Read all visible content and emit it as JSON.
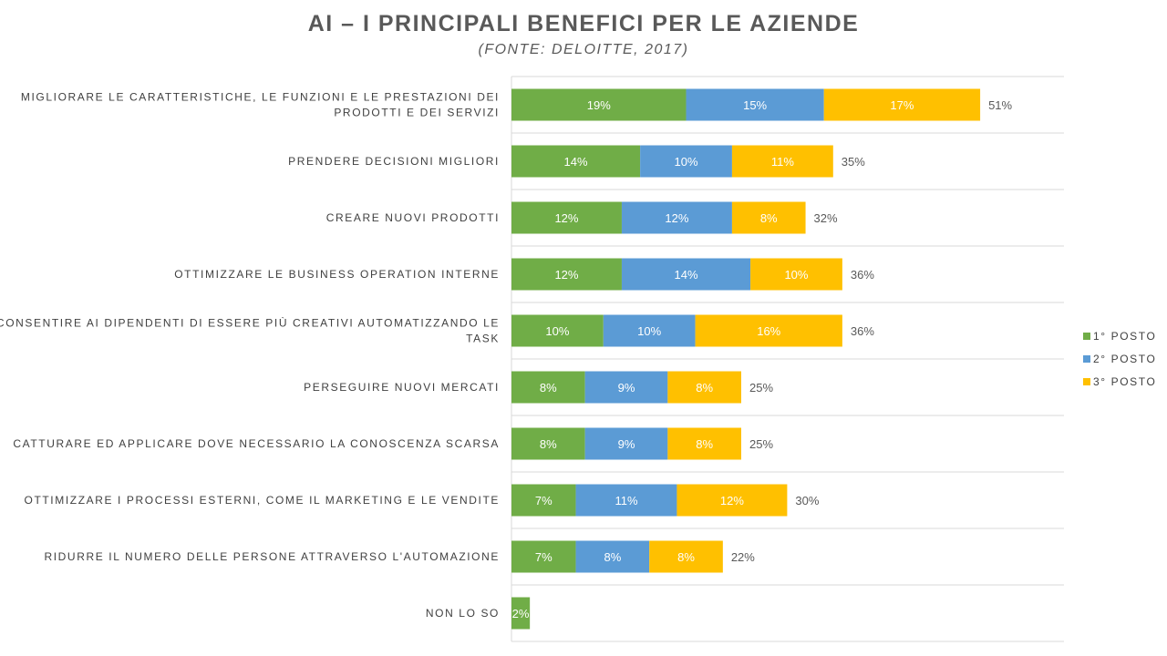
{
  "chart_data": {
    "type": "bar",
    "orientation": "horizontal",
    "stacked": true,
    "title": "AI – I PRINCIPALI BENEFICI PER LE AZIENDE",
    "subtitle": "(FONTE: DELOITTE, 2017)",
    "categories": [
      [
        "MIGLIORARE LE CARATTERISTICHE, LE FUNZIONI E LE PRESTAZIONI DEI",
        "PRODOTTI E DEI SERVIZI"
      ],
      [
        "PRENDERE DECISIONI MIGLIORI"
      ],
      [
        "CREARE NUOVI PRODOTTI"
      ],
      [
        "OTTIMIZZARE LE BUSINESS OPERATION INTERNE"
      ],
      [
        "CONSENTIRE AI DIPENDENTI DI ESSERE PIÙ CREATIVI AUTOMATIZZANDO LE",
        "TASK"
      ],
      [
        "PERSEGUIRE NUOVI MERCATI"
      ],
      [
        "CATTURARE ED APPLICARE DOVE NECESSARIO LA CONOSCENZA SCARSA"
      ],
      [
        "OTTIMIZZARE I PROCESSI ESTERNI, COME IL MARKETING E LE VENDITE"
      ],
      [
        "RIDURRE IL NUMERO DELLE PERSONE ATTRAVERSO L'AUTOMAZIONE"
      ],
      [
        "NON LO SO"
      ]
    ],
    "series": [
      {
        "name": "1° POSTO",
        "color": "#70ad47",
        "values": [
          19,
          14,
          12,
          12,
          10,
          8,
          8,
          7,
          7,
          2
        ],
        "labels": [
          "19%",
          "14%",
          "12%",
          "12%",
          "10%",
          "8%",
          "8%",
          "7%",
          "7%",
          "2%"
        ]
      },
      {
        "name": "2° POSTO",
        "color": "#5b9bd5",
        "values": [
          15,
          10,
          12,
          14,
          10,
          9,
          9,
          11,
          8,
          0
        ],
        "labels": [
          "15%",
          "10%",
          "12%",
          "14%",
          "10%",
          "9%",
          "9%",
          "11%",
          "8%",
          ""
        ]
      },
      {
        "name": "3° POSTO",
        "color": "#ffc000",
        "values": [
          17,
          11,
          8,
          10,
          16,
          8,
          8,
          12,
          8,
          0
        ],
        "labels": [
          "17%",
          "11%",
          "8%",
          "10%",
          "16%",
          "8%",
          "8%",
          "12%",
          "8%",
          ""
        ]
      }
    ],
    "totals": [
      "51%",
      "35%",
      "32%",
      "36%",
      "36%",
      "25%",
      "25%",
      "30%",
      "22%",
      ""
    ],
    "xlim": [
      0,
      60
    ],
    "gridlines": "horizontal separators",
    "legend": "right"
  }
}
